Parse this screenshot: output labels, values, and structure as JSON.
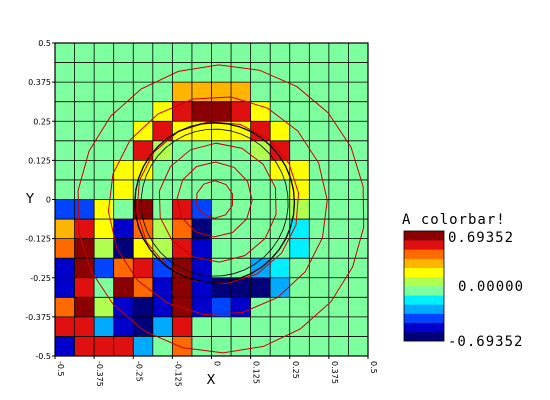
{
  "chart_data": {
    "type": "heatmap",
    "title": "",
    "xlabel": "X",
    "ylabel": "Y",
    "xlim": [
      -0.5,
      0.5
    ],
    "ylim": [
      -0.5,
      0.5
    ],
    "x_ticks": [
      "-0.5",
      "-0.375",
      "-0.25",
      "-0.125",
      "0",
      "0.125",
      "0.25",
      "0.375",
      "0.5"
    ],
    "y_ticks": [
      "-0.5",
      "-0.375",
      "-0.25",
      "-0.125",
      "0",
      "0.125",
      "0.25",
      "0.375",
      "0.5"
    ],
    "grid": true,
    "grid_size": [
      16,
      16
    ],
    "colorbar": {
      "title": "A colorbar!",
      "max_label": "0.69352",
      "mid_label": "0.00000",
      "min_label": "-0.69352",
      "min": -0.69352,
      "max": 0.69352,
      "levels": 12
    },
    "palette": [
      "#00007a",
      "#0000cc",
      "#0044ff",
      "#00aaff",
      "#00f0ff",
      "#7dffa0",
      "#b0ff50",
      "#ffff00",
      "#ffb400",
      "#ff6a00",
      "#e01010",
      "#8b0000"
    ],
    "cell_levels_top_to_bottom": [
      [
        5,
        5,
        5,
        5,
        5,
        5,
        5,
        5,
        5,
        5,
        5,
        5,
        5,
        5,
        5,
        5
      ],
      [
        5,
        5,
        5,
        5,
        5,
        5,
        5,
        5,
        5,
        5,
        5,
        5,
        5,
        5,
        5,
        5
      ],
      [
        5,
        5,
        5,
        5,
        5,
        5,
        8,
        8,
        8,
        8,
        5,
        5,
        5,
        5,
        5,
        5
      ],
      [
        5,
        5,
        5,
        5,
        5,
        7,
        10,
        11,
        11,
        10,
        7,
        5,
        5,
        5,
        5,
        5
      ],
      [
        5,
        5,
        5,
        5,
        7,
        10,
        7,
        7,
        7,
        7,
        10,
        7,
        5,
        5,
        5,
        5
      ],
      [
        5,
        5,
        5,
        5,
        10,
        6,
        5,
        5,
        5,
        5,
        6,
        10,
        5,
        5,
        5,
        5
      ],
      [
        5,
        5,
        5,
        7,
        7,
        5,
        5,
        5,
        5,
        5,
        5,
        7,
        7,
        5,
        5,
        5
      ],
      [
        5,
        5,
        5,
        7,
        5,
        5,
        5,
        5,
        5,
        5,
        5,
        5,
        7,
        5,
        5,
        5
      ],
      [
        2,
        2,
        7,
        5,
        11,
        5,
        10,
        2,
        5,
        5,
        5,
        5,
        6,
        5,
        5,
        5
      ],
      [
        8,
        10,
        7,
        1,
        9,
        6,
        9,
        0,
        5,
        5,
        5,
        5,
        4,
        5,
        5,
        5
      ],
      [
        9,
        11,
        6,
        0,
        7,
        6,
        10,
        1,
        5,
        5,
        5,
        5,
        4,
        5,
        5,
        5
      ],
      [
        1,
        11,
        2,
        9,
        10,
        2,
        11,
        1,
        5,
        5,
        3,
        4,
        5,
        5,
        5,
        5
      ],
      [
        1,
        10,
        5,
        11,
        9,
        1,
        11,
        1,
        0,
        0,
        0,
        3,
        5,
        5,
        5,
        5
      ],
      [
        9,
        11,
        6,
        1,
        0,
        1,
        11,
        1,
        2,
        1,
        5,
        5,
        5,
        5,
        5,
        5
      ],
      [
        10,
        10,
        3,
        1,
        0,
        3,
        10,
        5,
        5,
        5,
        5,
        5,
        5,
        5,
        5,
        5
      ],
      [
        1,
        10,
        10,
        10,
        3,
        5,
        9,
        5,
        5,
        5,
        5,
        5,
        5,
        5,
        5,
        5
      ]
    ],
    "contour_colour": "#cc0000",
    "ring_colour": "#000000",
    "grid_colour": "#000000"
  }
}
